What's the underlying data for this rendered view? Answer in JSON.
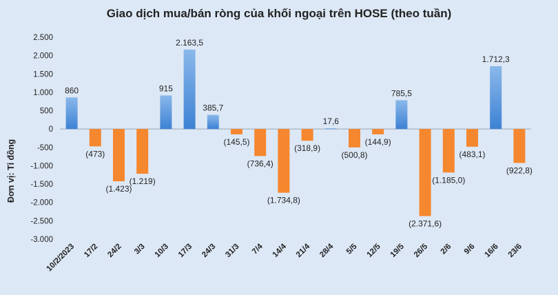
{
  "chart_data": {
    "type": "bar",
    "title": "Giao dịch mua/bán ròng của khối ngoại trên HOSE (theo tuần)",
    "ylabel": "Đơn vị: Tỉ đồng",
    "xlabel": "",
    "ylim": [
      -3000,
      2500
    ],
    "yticks": [
      2500,
      2000,
      1500,
      1000,
      500,
      0,
      -500,
      -1000,
      -1500,
      -2000,
      -2500,
      -3000
    ],
    "ytick_labels": [
      "2.500",
      "2.000",
      "1.500",
      "1.000",
      "500",
      "0",
      "-500",
      "-1.000",
      "-1.500",
      "-2.000",
      "-2.500",
      "-3.000"
    ],
    "categories": [
      "10/2/2023",
      "17/2",
      "24/2",
      "3/3",
      "10/3",
      "17/3",
      "24/3",
      "31/3",
      "7/4",
      "14/4",
      "21/4",
      "28/4",
      "5/5",
      "12/5",
      "19/5",
      "26/5",
      "2/6",
      "9/6",
      "16/6",
      "23/6"
    ],
    "values": [
      860,
      -473,
      -1423,
      -1219,
      915,
      2163.5,
      385.7,
      -145.5,
      -736.4,
      -1734.8,
      -318.9,
      17.6,
      -500.8,
      -144.9,
      785.5,
      -2371.6,
      -1185.0,
      -483.1,
      1712.3,
      -922.8
    ],
    "data_labels": [
      "860",
      "(473)",
      "(1.423)",
      "(1.219)",
      "915",
      "2.163,5",
      "385,7",
      "(145,5)",
      "(736,4)",
      "(1.734,8)",
      "(318,9)",
      "17,6",
      "(500,8)",
      "(144,9)",
      "785,5",
      "(2.371,6)",
      "(1.185,0)",
      "(483,1)",
      "1.712,3",
      "(922,8)"
    ],
    "grid": false,
    "legend": "none",
    "colors": {
      "positive_top": "#8ab8ea",
      "positive_bottom": "#3d82d4",
      "negative": "#f5872f",
      "background": "#dde8f6"
    }
  }
}
